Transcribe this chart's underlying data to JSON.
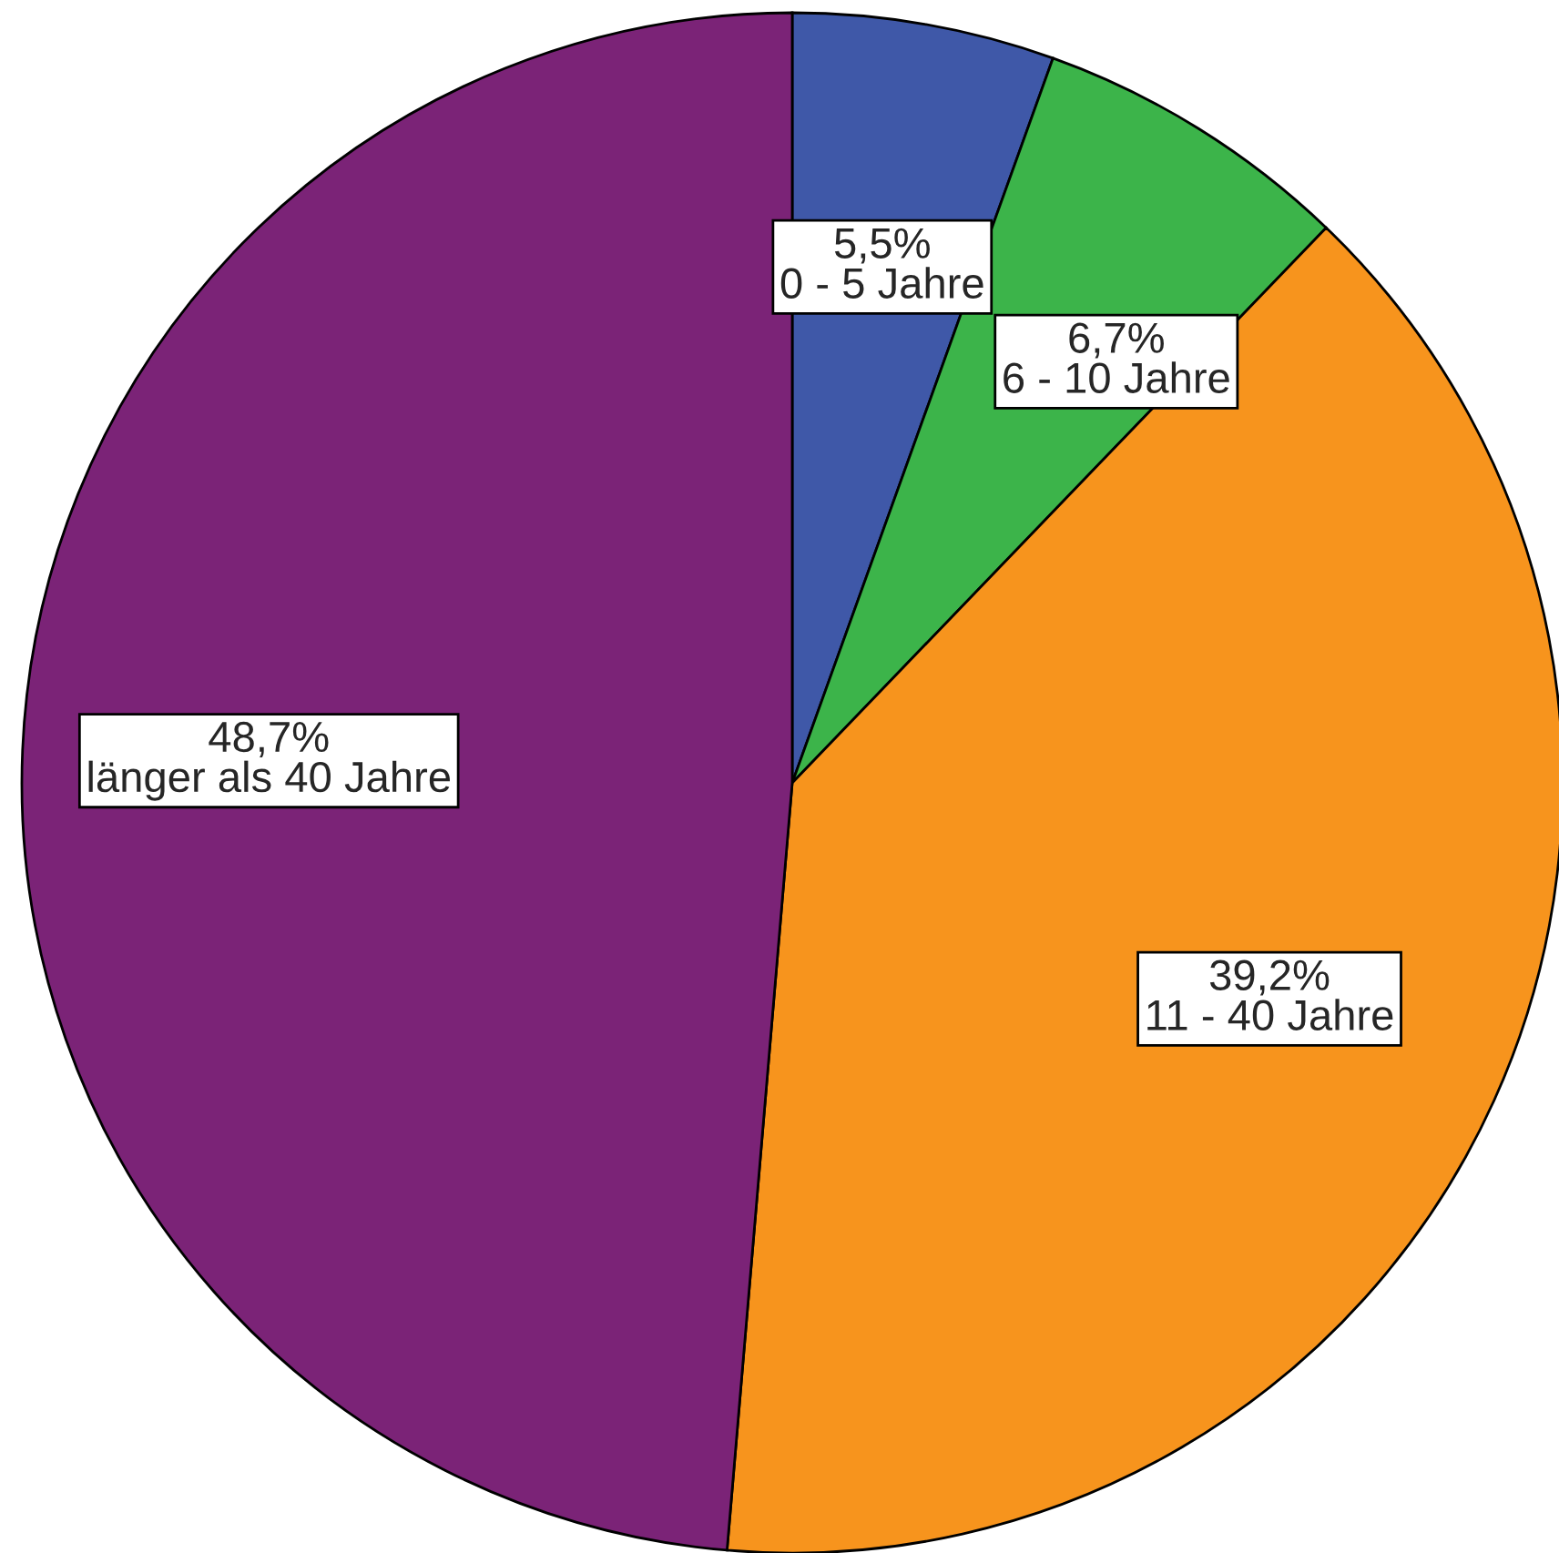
{
  "chart_data": {
    "type": "pie",
    "categories": [
      "0 - 5 Jahre",
      "6 - 10 Jahre",
      "11 - 40 Jahre",
      "länger als 40 Jahre"
    ],
    "values": [
      5.5,
      6.7,
      39.2,
      48.7
    ],
    "value_labels": [
      "5,5%",
      "6,7%",
      "39,2%",
      "48,7%"
    ],
    "colors": [
      "#3f58a8",
      "#3cb44a",
      "#f7941d",
      "#7b2377"
    ]
  }
}
